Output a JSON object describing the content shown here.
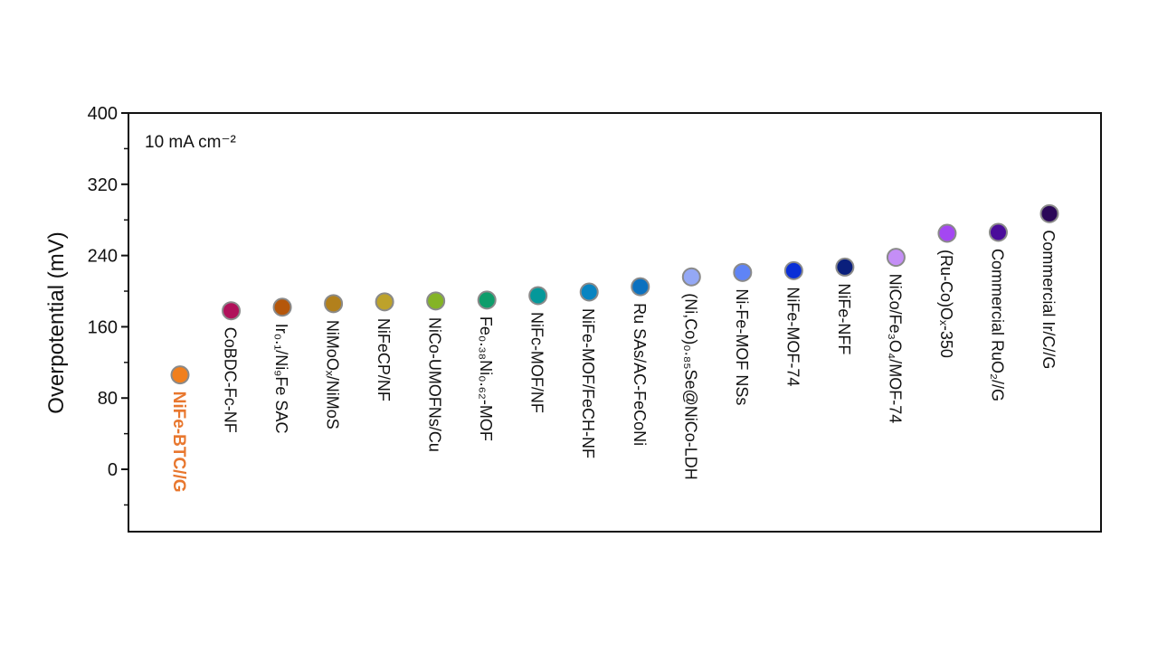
{
  "chart_data": {
    "type": "scatter",
    "ylabel": "Overpotential (mV)",
    "annotation": "10 mA cm⁻²",
    "ylim": [
      -70,
      400
    ],
    "yticks": [
      0,
      80,
      160,
      240,
      320,
      400
    ],
    "grid": false,
    "legend": "none",
    "highlight_color": "#E8772E",
    "points": [
      {
        "label": "NiFe-BTC//G",
        "value": 106,
        "color": "#F07F1E",
        "highlight": true
      },
      {
        "label": "CoBDC-Fc-NF",
        "value": 178,
        "color": "#B0115A"
      },
      {
        "label": "Ir₀.₁/Ni₉Fe SAC",
        "value": 182,
        "color": "#B5570B"
      },
      {
        "label": "NiMoOₓ/NiMoS",
        "value": 186,
        "color": "#B2801C"
      },
      {
        "label": "NiFeCP/NF",
        "value": 188,
        "color": "#BDA22B"
      },
      {
        "label": "NiCo-UMOFNs/Cu",
        "value": 189,
        "color": "#84B426"
      },
      {
        "label": "Fe₀.₃₈Ni₀.₆₂-MOF",
        "value": 190,
        "color": "#0E9D6B"
      },
      {
        "label": "NiFc-MOF/NF",
        "value": 195,
        "color": "#05989A"
      },
      {
        "label": "NiFe-MOF/FeCH-NF",
        "value": 199,
        "color": "#0984C1"
      },
      {
        "label": "Ru SAs/AC-FeCoNi",
        "value": 205,
        "color": "#0C71BF"
      },
      {
        "label": "(Ni,Co)₀.₈₅Se@NiCo-LDH",
        "value": 216,
        "color": "#94A8F5"
      },
      {
        "label": "Ni-Fe-MOF NSs",
        "value": 221,
        "color": "#5F84F6"
      },
      {
        "label": "NiFe-MOF-74",
        "value": 223,
        "color": "#0A2FD6"
      },
      {
        "label": "NiFe-NFF",
        "value": 227,
        "color": "#0A1F7C"
      },
      {
        "label": "NiCo/Fe₃O₄/MOF-74",
        "value": 238,
        "color": "#C48EF6"
      },
      {
        "label": "(Ru-Co)Oₓ-350",
        "value": 265,
        "color": "#A447F2"
      },
      {
        "label": "Commercial RuO₂//G",
        "value": 266,
        "color": "#4A0C9A"
      },
      {
        "label": "Commercial Ir/C//G",
        "value": 287,
        "color": "#2B0858"
      }
    ]
  }
}
